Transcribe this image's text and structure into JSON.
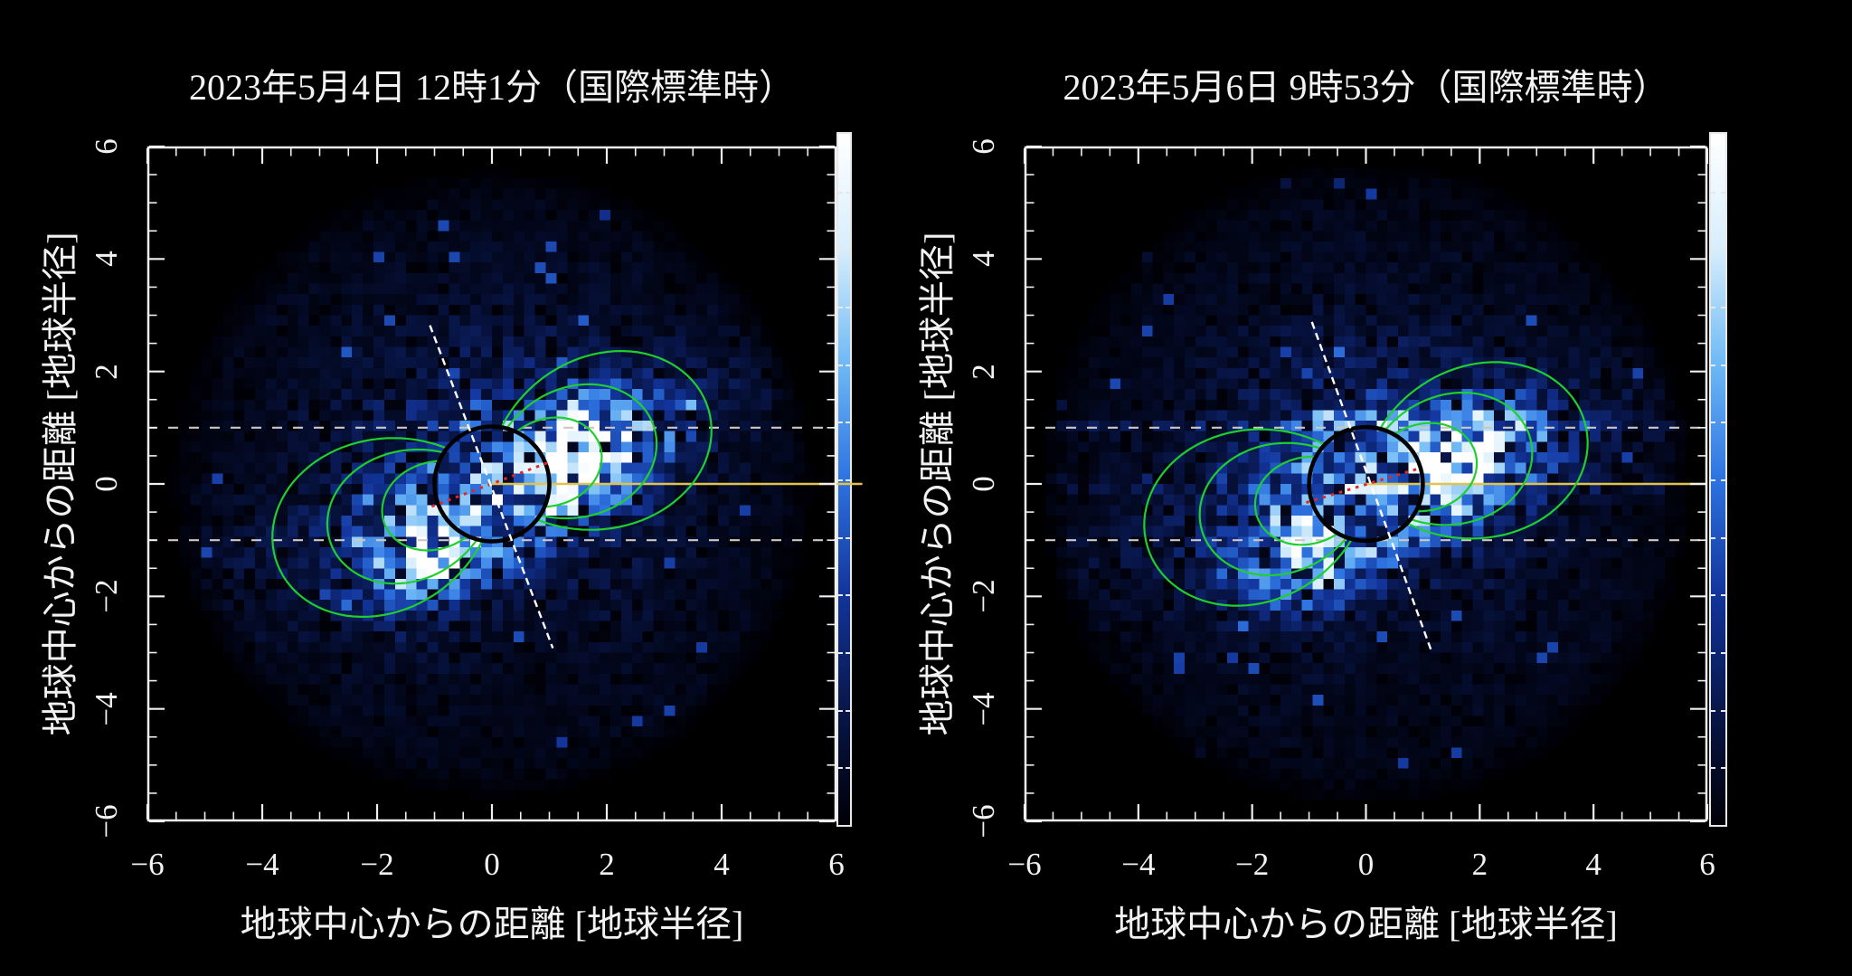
{
  "figure": {
    "background": "#000000",
    "description": "Two-panel extreme-ultraviolet imaging heatmaps of Earth's plasmasphere with dipole field-line overlays"
  },
  "panels": [
    {
      "title": "2023年5月4日 12時1分（国際標準時）",
      "xlabel": "地球中心からの距離 [地球半径]",
      "ylabel": "地球中心からの距離 [地球半径]"
    },
    {
      "title": "2023年5月6日 9時53分（国際標準時）",
      "xlabel": "地球中心からの距離 [地球半径]",
      "ylabel": "地球中心からの距離 [地球半径]"
    }
  ],
  "chart_data": [
    {
      "type": "heatmap",
      "title": "2023年5月4日 12時1分（国際標準時）",
      "xlabel": "地球中心からの距離 [地球半径]",
      "ylabel": "地球中心からの距離 [地球半径]",
      "xlim": [
        -6,
        6
      ],
      "ylim": [
        -6,
        6
      ],
      "x_ticks": [
        -6,
        -4,
        -2,
        0,
        2,
        4,
        6
      ],
      "y_ticks": [
        -6,
        -4,
        -2,
        0,
        2,
        4,
        6
      ],
      "minor_tick_step": 0.5,
      "y_tick_label_rotation_deg": -90,
      "grid": false,
      "frame_color": "#f0f0f0",
      "colorbar": {
        "position": "right",
        "orientation": "vertical",
        "colors_top_to_bottom": [
          "#ffffff",
          "#d7eefc",
          "#6eb9f5",
          "#2d73e1",
          "#12349a",
          "#08164a",
          "#000006"
        ]
      },
      "field_of_view": {
        "radius_re": 5.55,
        "octagon_cut_re": 7.9
      },
      "overlays": {
        "earth_circle": {
          "center_re": [
            0,
            0
          ],
          "radius_re": 1,
          "stroke": "#000000"
        },
        "dipole_field_lines": {
          "L_shells_re": [
            2,
            3,
            4
          ],
          "equator_tilt_deg": 21,
          "color": "#1fcf2e"
        },
        "dipole_axis_line": {
          "from_re": [
            -1.08,
            2.82
          ],
          "to_re": [
            1.06,
            -2.92
          ],
          "color": "#ffffff",
          "style": "dashed"
        },
        "magnetic_equator_segment": {
          "from_re": [
            -1.05,
            -0.4
          ],
          "to_re": [
            0.98,
            0.38
          ],
          "color": "#e02828",
          "style": "dotted"
        },
        "sun_direction_line": {
          "from_re": [
            0,
            0
          ],
          "to_re": [
            6.45,
            0
          ],
          "color": "#e2c24a",
          "style": "solid"
        },
        "horizontal_reference_lines_re": [
          1,
          -1
        ],
        "reference_line_color": "#cfc6c2"
      },
      "emission_features": {
        "bright_lobe_dayside_re": [
          1.3,
          0.45
        ],
        "bright_lobe_nightside_re": [
          -0.8,
          -1.2
        ],
        "shadow_below_earth": true,
        "horizontal_noise_bands_y_re": []
      }
    },
    {
      "type": "heatmap",
      "title": "2023年5月6日 9時53分（国際標準時）",
      "xlabel": "地球中心からの距離 [地球半径]",
      "ylabel": "地球中心からの距離 [地球半径]",
      "xlim": [
        -6,
        6
      ],
      "ylim": [
        -6,
        6
      ],
      "x_ticks": [
        -6,
        -4,
        -2,
        0,
        2,
        4,
        6
      ],
      "y_ticks": [
        -6,
        -4,
        -2,
        0,
        2,
        4,
        6
      ],
      "minor_tick_step": 0.5,
      "y_tick_label_rotation_deg": -90,
      "grid": false,
      "frame_color": "#f0f0f0",
      "colorbar": {
        "position": "right",
        "orientation": "vertical",
        "colors_top_to_bottom": [
          "#ffffff",
          "#d7eefc",
          "#6eb9f5",
          "#2d73e1",
          "#12349a",
          "#08164a",
          "#000006"
        ]
      },
      "field_of_view": {
        "radius_re": 5.7,
        "octagon_cut_re": 8.0
      },
      "overlays": {
        "earth_circle": {
          "center_re": [
            0,
            0
          ],
          "radius_re": 1,
          "stroke": "#000000"
        },
        "dipole_field_lines": {
          "L_shells_re": [
            2,
            3,
            4
          ],
          "equator_tilt_deg": 16,
          "color": "#1fcf2e"
        },
        "dipole_axis_line": {
          "from_re": [
            -0.95,
            2.88
          ],
          "to_re": [
            1.15,
            -2.97
          ],
          "color": "#ffffff",
          "style": "dashed"
        },
        "magnetic_equator_segment": {
          "from_re": [
            -1.05,
            -0.33
          ],
          "to_re": [
            0.95,
            0.28
          ],
          "color": "#e02828",
          "style": "dotted"
        },
        "sun_direction_line": {
          "from_re": [
            0,
            0
          ],
          "to_re": [
            6.0,
            0
          ],
          "color": "#e2c24a",
          "style": "solid"
        },
        "horizontal_reference_lines_re": [
          1,
          -1
        ],
        "reference_line_color": "#cfc6c2"
      },
      "emission_features": {
        "bright_lobe_dayside_re": [
          1.35,
          0.4
        ],
        "bright_lobe_nightside_re": [
          -0.75,
          -1.25
        ],
        "shadow_below_earth": true,
        "horizontal_noise_bands_y_re": [
          1.0,
          0.0
        ]
      }
    }
  ]
}
